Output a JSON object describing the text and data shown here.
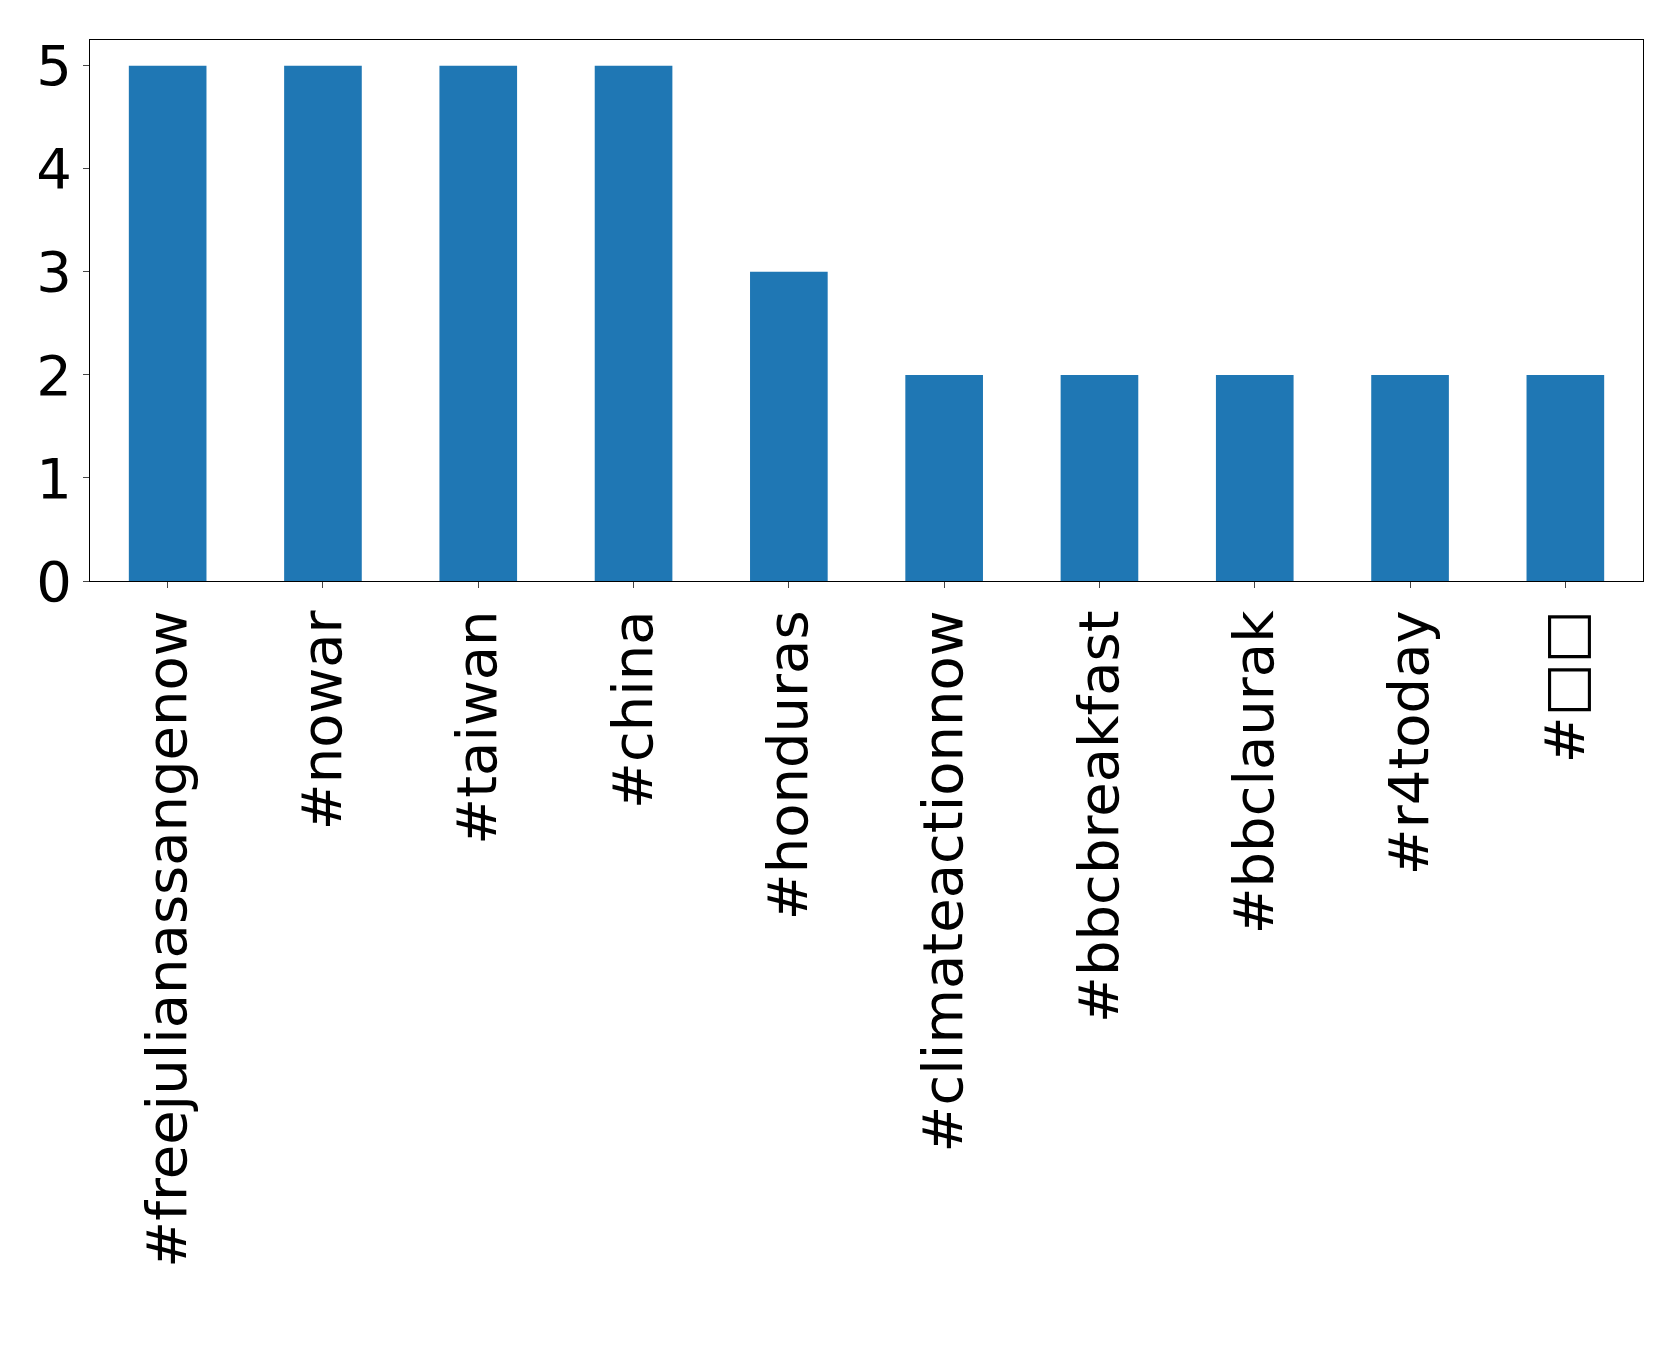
{
  "chart_data": {
    "type": "bar",
    "categories": [
      "#freejulianassangenow",
      "#nowar",
      "#taiwan",
      "#china",
      "#honduras",
      "#climateactionnow",
      "#bbcbreakfast",
      "#bbclaurak",
      "#r4today",
      "#□□"
    ],
    "values": [
      5,
      5,
      5,
      5,
      3,
      2,
      2,
      2,
      2,
      2
    ],
    "color": "#1f77b4",
    "ylim": [
      0,
      5.25
    ],
    "yticks": [
      0,
      1,
      2,
      3,
      4,
      5
    ]
  }
}
